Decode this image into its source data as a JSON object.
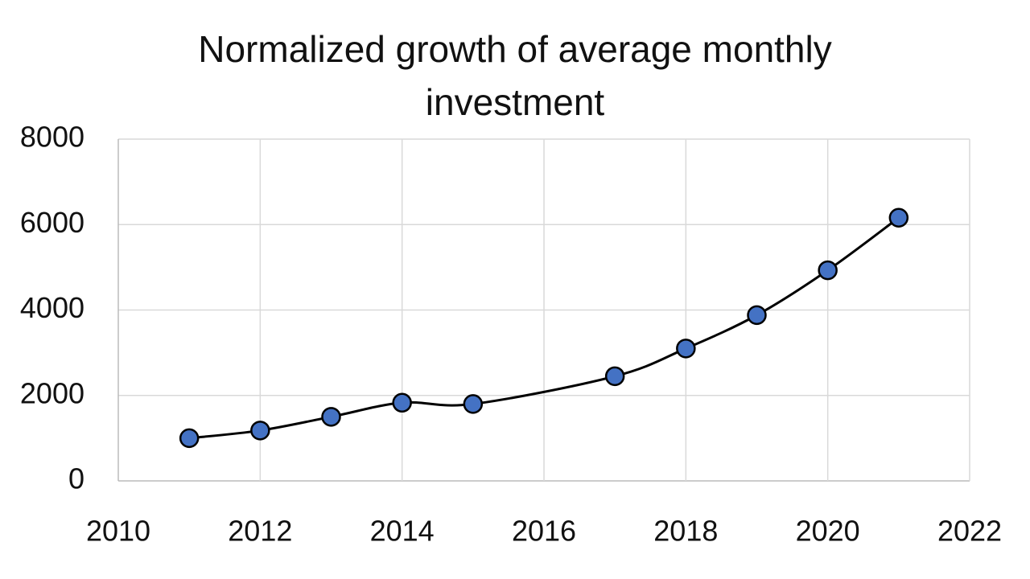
{
  "chart_data": {
    "type": "line",
    "title": "Normalized growth of average monthly investment",
    "x": [
      2011,
      2012,
      2013,
      2014,
      2015,
      2017,
      2018,
      2019,
      2020,
      2021
    ],
    "series": [
      {
        "name": "Normalized growth",
        "color": "#4472c4",
        "values": [
          1000,
          1180,
          1500,
          1830,
          1800,
          2450,
          3100,
          3880,
          4930,
          6160
        ]
      }
    ],
    "xlim": [
      2010,
      2022
    ],
    "xticks": [
      2010,
      2012,
      2014,
      2016,
      2018,
      2020,
      2022
    ],
    "ylim": [
      0,
      8000
    ],
    "yticks": [
      0,
      2000,
      4000,
      6000,
      8000
    ],
    "grid": true,
    "smooth": true
  }
}
